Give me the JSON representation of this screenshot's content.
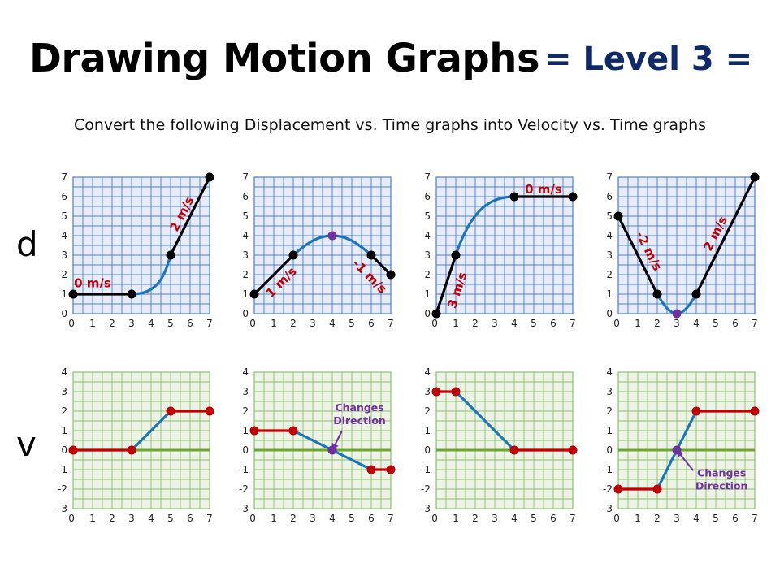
{
  "header": {
    "title": "Drawing Motion Graphs",
    "level": "= Level 3 =",
    "subtitle": "Convert the following Displacement vs. Time graphs into Velocity vs. Time graphs"
  },
  "rows": {
    "displacement": "d",
    "velocity": "v"
  },
  "colors": {
    "d_grid_bg": "#e8ecf8",
    "d_grid_line": "#4a7fd4",
    "v_grid_bg": "#edf3e6",
    "v_grid_line": "#8cc06a",
    "zero_line": "#6aaa2a",
    "black": "#000000",
    "blue": "#1b75bc",
    "red_line": "#c00000",
    "red_point": "#c00000",
    "purple": "#7030a0"
  },
  "chart_data": [
    {
      "type": "line",
      "panel": "d-1",
      "xlim": [
        0,
        7
      ],
      "ylim": [
        0,
        7
      ],
      "x_ticks": [
        "0",
        "1",
        "2",
        "3",
        "4",
        "5",
        "6",
        "7"
      ],
      "y_ticks": [
        "0",
        "1",
        "2",
        "3",
        "4",
        "5",
        "6",
        "7"
      ],
      "segments": [
        {
          "kind": "line",
          "color": "black",
          "points": [
            [
              0,
              1
            ],
            [
              3,
              1
            ]
          ]
        },
        {
          "kind": "curve",
          "color": "blue",
          "points": [
            [
              3,
              1
            ],
            [
              5,
              3
            ]
          ],
          "controls": [
            [
              4.4,
              1.0
            ],
            [
              4.7,
              2.0
            ]
          ]
        },
        {
          "kind": "line",
          "color": "black",
          "points": [
            [
              5,
              3
            ],
            [
              7,
              7
            ]
          ]
        }
      ],
      "points": [
        {
          "x": 0,
          "y": 1,
          "color": "black"
        },
        {
          "x": 3,
          "y": 1,
          "color": "black"
        },
        {
          "x": 5,
          "y": 3,
          "color": "black"
        },
        {
          "x": 7,
          "y": 7,
          "color": "black"
        }
      ],
      "labels": [
        {
          "text": "0 m/s",
          "x": 1.0,
          "y": 1.55,
          "rotate": 0
        },
        {
          "text": "2 m/s",
          "x": 5.6,
          "y": 5.1,
          "rotate": -63
        }
      ]
    },
    {
      "type": "line",
      "panel": "d-2",
      "xlim": [
        0,
        7
      ],
      "ylim": [
        0,
        7
      ],
      "x_ticks": [
        "0",
        "1",
        "2",
        "3",
        "4",
        "5",
        "6",
        "7"
      ],
      "y_ticks": [
        "0",
        "1",
        "2",
        "3",
        "4",
        "5",
        "6",
        "7"
      ],
      "segments": [
        {
          "kind": "line",
          "color": "black",
          "points": [
            [
              0,
              1
            ],
            [
              2,
              3
            ]
          ]
        },
        {
          "kind": "curve",
          "color": "blue",
          "points": [
            [
              2,
              3
            ],
            [
              4,
              4
            ]
          ],
          "controls": [
            [
              2.8,
              3.7
            ],
            [
              3.3,
              4.0
            ]
          ]
        },
        {
          "kind": "curve",
          "color": "blue",
          "points": [
            [
              4,
              4
            ],
            [
              6,
              3
            ]
          ],
          "controls": [
            [
              4.7,
              4.0
            ],
            [
              5.2,
              3.7
            ]
          ]
        },
        {
          "kind": "line",
          "color": "black",
          "points": [
            [
              6,
              3
            ],
            [
              7,
              2
            ]
          ]
        }
      ],
      "points": [
        {
          "x": 0,
          "y": 1,
          "color": "black"
        },
        {
          "x": 2,
          "y": 3,
          "color": "black"
        },
        {
          "x": 4,
          "y": 4,
          "color": "purple"
        },
        {
          "x": 6,
          "y": 3,
          "color": "black"
        },
        {
          "x": 7,
          "y": 2,
          "color": "black"
        }
      ],
      "labels": [
        {
          "text": "1 m/s",
          "x": 1.4,
          "y": 1.6,
          "rotate": -45
        },
        {
          "text": "-1 m/s",
          "x": 5.9,
          "y": 1.9,
          "rotate": 45
        }
      ]
    },
    {
      "type": "line",
      "panel": "d-3",
      "xlim": [
        0,
        7
      ],
      "ylim": [
        0,
        7
      ],
      "x_ticks": [
        "0",
        "1",
        "2",
        "3",
        "4",
        "5",
        "6",
        "7"
      ],
      "y_ticks": [
        "0",
        "1",
        "2",
        "3",
        "4",
        "5",
        "6",
        "7"
      ],
      "segments": [
        {
          "kind": "line",
          "color": "black",
          "points": [
            [
              0,
              0
            ],
            [
              1,
              3
            ]
          ]
        },
        {
          "kind": "curve",
          "color": "blue",
          "points": [
            [
              1,
              3
            ],
            [
              4,
              6
            ]
          ],
          "controls": [
            [
              1.8,
              5.4
            ],
            [
              2.8,
              6.0
            ]
          ]
        },
        {
          "kind": "line",
          "color": "black",
          "points": [
            [
              4,
              6
            ],
            [
              7,
              6
            ]
          ]
        }
      ],
      "points": [
        {
          "x": 0,
          "y": 0,
          "color": "black"
        },
        {
          "x": 1,
          "y": 3,
          "color": "black"
        },
        {
          "x": 4,
          "y": 6,
          "color": "black"
        },
        {
          "x": 7,
          "y": 6,
          "color": "black"
        }
      ],
      "labels": [
        {
          "text": "0 m/s",
          "x": 5.5,
          "y": 6.35,
          "rotate": 0
        },
        {
          "text": "3 m/s",
          "x": 1.1,
          "y": 1.2,
          "rotate": -72
        }
      ]
    },
    {
      "type": "line",
      "panel": "d-4",
      "xlim": [
        0,
        7
      ],
      "ylim": [
        0,
        7
      ],
      "x_ticks": [
        "0",
        "1",
        "2",
        "3",
        "4",
        "5",
        "6",
        "7"
      ],
      "y_ticks": [
        "0",
        "1",
        "2",
        "3",
        "4",
        "5",
        "6",
        "7"
      ],
      "segments": [
        {
          "kind": "line",
          "color": "black",
          "points": [
            [
              0,
              5
            ],
            [
              2,
              1
            ]
          ]
        },
        {
          "kind": "curve",
          "color": "blue",
          "points": [
            [
              2,
              1
            ],
            [
              3,
              0
            ]
          ],
          "controls": [
            [
              2.4,
              0.3
            ],
            [
              2.7,
              0.0
            ]
          ]
        },
        {
          "kind": "curve",
          "color": "blue",
          "points": [
            [
              3,
              0
            ],
            [
              4,
              1
            ]
          ],
          "controls": [
            [
              3.3,
              0.0
            ],
            [
              3.6,
              0.3
            ]
          ]
        },
        {
          "kind": "line",
          "color": "black",
          "points": [
            [
              4,
              1
            ],
            [
              7,
              7
            ]
          ]
        }
      ],
      "points": [
        {
          "x": 0,
          "y": 5,
          "color": "black"
        },
        {
          "x": 2,
          "y": 1,
          "color": "black"
        },
        {
          "x": 3,
          "y": 0,
          "color": "purple"
        },
        {
          "x": 4,
          "y": 1,
          "color": "black"
        },
        {
          "x": 7,
          "y": 7,
          "color": "black"
        }
      ],
      "labels": [
        {
          "text": "-2 m/s",
          "x": 1.55,
          "y": 3.2,
          "rotate": 63
        },
        {
          "text": "2 m/s",
          "x": 5.0,
          "y": 4.1,
          "rotate": -63
        }
      ]
    },
    {
      "type": "line",
      "panel": "v-1",
      "xlim": [
        0,
        7
      ],
      "ylim": [
        -3,
        4
      ],
      "x_ticks": [
        "0",
        "1",
        "2",
        "3",
        "4",
        "5",
        "6",
        "7"
      ],
      "y_ticks": [
        "-3",
        "-2",
        "-1",
        "0",
        "1",
        "2",
        "3",
        "4"
      ],
      "segments": [
        {
          "kind": "line",
          "color": "red",
          "points": [
            [
              0,
              0
            ],
            [
              3,
              0
            ]
          ]
        },
        {
          "kind": "line",
          "color": "blue",
          "points": [
            [
              3,
              0
            ],
            [
              5,
              2
            ]
          ]
        },
        {
          "kind": "line",
          "color": "red",
          "points": [
            [
              5,
              2
            ],
            [
              7,
              2
            ]
          ]
        }
      ],
      "points": [
        {
          "x": 0,
          "y": 0,
          "color": "red"
        },
        {
          "x": 3,
          "y": 0,
          "color": "red"
        },
        {
          "x": 5,
          "y": 2,
          "color": "red"
        },
        {
          "x": 7,
          "y": 2,
          "color": "red"
        }
      ],
      "notes": []
    },
    {
      "type": "line",
      "panel": "v-2",
      "xlim": [
        0,
        7
      ],
      "ylim": [
        -3,
        4
      ],
      "x_ticks": [
        "0",
        "1",
        "2",
        "3",
        "4",
        "5",
        "6",
        "7"
      ],
      "y_ticks": [
        "-3",
        "-2",
        "-1",
        "0",
        "1",
        "2",
        "3",
        "4"
      ],
      "segments": [
        {
          "kind": "line",
          "color": "red",
          "points": [
            [
              0,
              1
            ],
            [
              2,
              1
            ]
          ]
        },
        {
          "kind": "line",
          "color": "blue",
          "points": [
            [
              2,
              1
            ],
            [
              6,
              -1
            ]
          ]
        },
        {
          "kind": "line",
          "color": "red",
          "points": [
            [
              6,
              -1
            ],
            [
              7,
              -1
            ]
          ]
        }
      ],
      "points": [
        {
          "x": 0,
          "y": 1,
          "color": "red"
        },
        {
          "x": 2,
          "y": 1,
          "color": "red"
        },
        {
          "x": 4,
          "y": 0,
          "color": "purple"
        },
        {
          "x": 6,
          "y": -1,
          "color": "red"
        },
        {
          "x": 7,
          "y": -1,
          "color": "red"
        }
      ],
      "notes": [
        {
          "lines": [
            "Changes",
            "Direction"
          ],
          "x": 5.4,
          "y": 2.0,
          "arrow_to": [
            4,
            0
          ],
          "arrow_from": [
            4.5,
            1.0
          ]
        }
      ]
    },
    {
      "type": "line",
      "panel": "v-3",
      "xlim": [
        0,
        7
      ],
      "ylim": [
        -3,
        4
      ],
      "x_ticks": [
        "0",
        "1",
        "2",
        "3",
        "4",
        "5",
        "6",
        "7"
      ],
      "y_ticks": [
        "-3",
        "-2",
        "-1",
        "0",
        "1",
        "2",
        "3",
        "4"
      ],
      "segments": [
        {
          "kind": "line",
          "color": "red",
          "points": [
            [
              0,
              3
            ],
            [
              1,
              3
            ]
          ]
        },
        {
          "kind": "line",
          "color": "blue",
          "points": [
            [
              1,
              3
            ],
            [
              4,
              0
            ]
          ]
        },
        {
          "kind": "line",
          "color": "red",
          "points": [
            [
              4,
              0
            ],
            [
              7,
              0
            ]
          ]
        }
      ],
      "points": [
        {
          "x": 0,
          "y": 3,
          "color": "red"
        },
        {
          "x": 1,
          "y": 3,
          "color": "red"
        },
        {
          "x": 4,
          "y": 0,
          "color": "red"
        },
        {
          "x": 7,
          "y": 0,
          "color": "red"
        }
      ],
      "notes": []
    },
    {
      "type": "line",
      "panel": "v-4",
      "xlim": [
        0,
        7
      ],
      "ylim": [
        -3,
        4
      ],
      "x_ticks": [
        "0",
        "1",
        "2",
        "3",
        "4",
        "5",
        "6",
        "7"
      ],
      "y_ticks": [
        "-3",
        "-2",
        "-1",
        "0",
        "1",
        "2",
        "3",
        "4"
      ],
      "segments": [
        {
          "kind": "line",
          "color": "red",
          "points": [
            [
              0,
              -2
            ],
            [
              2,
              -2
            ]
          ]
        },
        {
          "kind": "line",
          "color": "blue",
          "points": [
            [
              2,
              -2
            ],
            [
              4,
              2
            ]
          ]
        },
        {
          "kind": "line",
          "color": "red",
          "points": [
            [
              4,
              2
            ],
            [
              7,
              2
            ]
          ]
        }
      ],
      "points": [
        {
          "x": 0,
          "y": -2,
          "color": "red"
        },
        {
          "x": 2,
          "y": -2,
          "color": "red"
        },
        {
          "x": 3,
          "y": 0,
          "color": "purple"
        },
        {
          "x": 4,
          "y": 2,
          "color": "red"
        },
        {
          "x": 7,
          "y": 2,
          "color": "red"
        }
      ],
      "notes": [
        {
          "lines": [
            "Changes",
            "Direction"
          ],
          "x": 5.3,
          "y": -1.35,
          "arrow_to": [
            3,
            0
          ],
          "arrow_from": [
            3.85,
            -1.05
          ]
        }
      ]
    }
  ]
}
